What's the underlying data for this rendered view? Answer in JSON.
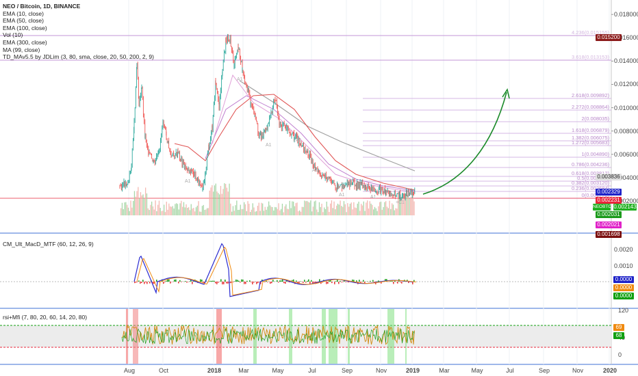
{
  "legend": {
    "title": "NEO / Bitcoin, 1D, BINANCE",
    "lines": [
      "EMA (10, close)",
      "EMA (50, close)",
      "EMA (100, close)",
      "Vol (10)",
      "EMA (300, close)",
      "MA (99, close)",
      "TD_MAv5.5 by JDLim (3, 80, sma, close, 20, 50, 200, 2, 9)"
    ]
  },
  "panes": {
    "macd_title": "CM_Ult_MacD_MTF (60, 12, 26, 9)",
    "rsi_title": "rsi+Mfi (7, 80, 20, 60, 14, 20, 80)"
  },
  "axis": {
    "price_ticks": [
      "0.018000",
      "0.016000",
      "0.014000",
      "0.012000",
      "0.010000",
      "0.008000",
      "0.006000",
      "0.004000",
      "0.002000"
    ],
    "macd_ticks": [
      "0.0020",
      "0.0010"
    ],
    "rsi_ticks": [
      "120",
      "40",
      "0"
    ],
    "time_ticks": [
      "Aug",
      "Oct",
      "2018",
      "Mar",
      "May",
      "Jul",
      "Sep",
      "Nov",
      "2019",
      "Mar",
      "May",
      "Jul",
      "Sep",
      "Nov",
      "2020"
    ]
  },
  "price_tags": [
    {
      "text": "0.015200",
      "color": "#8b1a1a"
    },
    {
      "text": "0.003836",
      "color": "#e0e0e0",
      "text_color": "#222"
    },
    {
      "text": "0.002329",
      "color": "#1e22c8"
    },
    {
      "text": "0.002231",
      "color": "#e8263a"
    },
    {
      "text": "0.002143",
      "color": "#20b020",
      "label": "NEOBTC"
    },
    {
      "text": "0.002031",
      "color": "#1a9a1a"
    },
    {
      "text": "0.002021",
      "color": "#e021c8"
    },
    {
      "text": "0.001698",
      "color": "#7a0e0e"
    }
  ],
  "macd_tags": [
    {
      "text": "0.0000",
      "color": "#1e22c8"
    },
    {
      "text": "0.0000",
      "color": "#f08a10"
    },
    {
      "text": "0.0000",
      "color": "#11a011"
    }
  ],
  "rsi_tags": [
    {
      "text": "69",
      "color": "#f08a10"
    },
    {
      "text": "68",
      "color": "#11a011"
    }
  ],
  "fib_levels": [
    {
      "text": "4.236(0.015155)",
      "faint": true
    },
    {
      "text": "3.618(0.013153)",
      "faint": true
    },
    {
      "text": "2.618(0.009892)"
    },
    {
      "text": "2.272(0.008864)"
    },
    {
      "text": "2(0.008035)"
    },
    {
      "text": "1.618(0.006879)"
    },
    {
      "text": "1.382(0.006075)"
    },
    {
      "text": "1.272(0.005683)"
    },
    {
      "text": "1(0.004890)"
    },
    {
      "text": "0.786(0.004236)"
    },
    {
      "text": "0.618(0.003812)"
    },
    {
      "text": "0.5(0.003458)"
    },
    {
      "text": "0.382(0.003120)"
    },
    {
      "text": "0.236(0.002684)"
    },
    {
      "text": "0(0.001778)"
    }
  ],
  "annotations": {
    "td_labels": [
      "A1",
      "A1",
      "A1",
      "A1",
      "A1",
      "A1",
      "A1",
      "+C1"
    ]
  },
  "chart_data": {
    "type": "line",
    "title": "NEO / Bitcoin, 1D, BINANCE",
    "x": [
      "Aug",
      "Oct",
      "2018",
      "Mar",
      "May",
      "Jul",
      "Sep",
      "Nov",
      "2019"
    ],
    "series": [
      {
        "name": "NEOBTC",
        "values": [
          0.00245,
          0.0042,
          0.0035,
          0.011,
          0.008,
          0.0068,
          0.0035,
          0.0026,
          0.0021
        ]
      }
    ],
    "ylim": [
      0.0017,
      0.0182
    ],
    "xlabel": "",
    "ylabel": ""
  },
  "colors": {
    "up": "#26a69a",
    "down": "#ef5350",
    "fib": "#c9a0dc",
    "arrow": "#1b8a2a",
    "divider": "#3d6fd6"
  }
}
